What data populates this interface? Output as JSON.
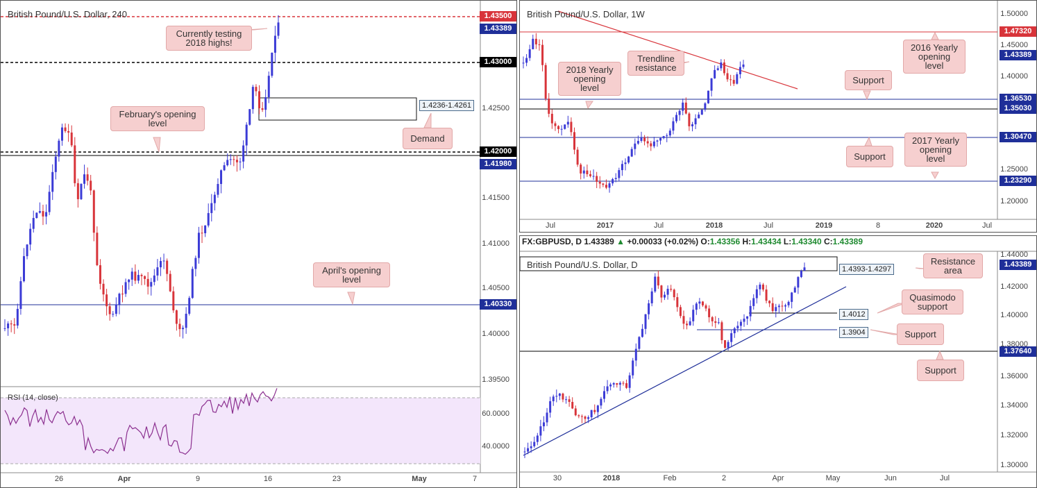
{
  "colors": {
    "up": "#3b3bd6",
    "down": "#d8343a",
    "resistance": "#d8343a",
    "support": "#1f2f99",
    "black": "#000000",
    "rsi": "#8b2f8f"
  },
  "p1": {
    "title": "British Pound/U.S. Dollar, 240",
    "price_tags": [
      {
        "text": "1.43500",
        "kind": "red"
      },
      {
        "text": "1.43389",
        "kind": "blue"
      },
      {
        "text": "1.43000",
        "kind": "black"
      },
      {
        "text": "1.42000",
        "kind": "black"
      },
      {
        "text": "1.41980",
        "kind": "blue"
      },
      {
        "text": "1.40330",
        "kind": "blue"
      }
    ],
    "y_labels": [
      "1.42500",
      "1.41500",
      "1.41000",
      "1.40500",
      "1.40000",
      "1.39500"
    ],
    "rsi_labels": [
      "60.0000",
      "40.0000"
    ],
    "rsi_title": "RSI (14, close)",
    "x_labels": [
      {
        "t": "26",
        "b": false
      },
      {
        "t": "Apr",
        "b": true
      },
      {
        "t": "9",
        "b": false
      },
      {
        "t": "16",
        "b": false
      },
      {
        "t": "23",
        "b": false
      },
      {
        "t": "May",
        "b": true
      },
      {
        "t": "7",
        "b": false
      }
    ],
    "callouts": {
      "testing": "Currently testing 2018 highs!",
      "feb": "February's opening level",
      "apr": "April's opening level",
      "demand": "Demand"
    },
    "demand_box": "1.4236-1.4261"
  },
  "p2": {
    "title": "British Pound/U.S. Dollar, 1W",
    "price_tags": [
      {
        "text": "1.47320",
        "kind": "red"
      },
      {
        "text": "1.43389",
        "kind": "blue"
      },
      {
        "text": "1.36530",
        "kind": "blue"
      },
      {
        "text": "1.35030",
        "kind": "blue"
      },
      {
        "text": "1.30470",
        "kind": "blue"
      },
      {
        "text": "1.23290",
        "kind": "blue"
      }
    ],
    "y_labels": [
      "1.50000",
      "1.45000",
      "1.40000",
      "1.25000",
      "1.20000"
    ],
    "x_labels": [
      {
        "t": "Jul",
        "b": false
      },
      {
        "t": "2017",
        "b": true
      },
      {
        "t": "Jul",
        "b": false
      },
      {
        "t": "2018",
        "b": true
      },
      {
        "t": "Jul",
        "b": false
      },
      {
        "t": "2019",
        "b": true
      },
      {
        "t": "8",
        "b": false
      },
      {
        "t": "2020",
        "b": true
      },
      {
        "t": "Jul",
        "b": false
      }
    ],
    "callouts": {
      "y2018": "2018 Yearly opening level",
      "trend": "Trendline resistance",
      "y2016": "2016 Yearly opening level",
      "support1": "Support",
      "support2": "Support",
      "y2017": "2017 Yearly opening level"
    }
  },
  "p3": {
    "ohlc": {
      "sym": "FX:GBPUSD, D",
      "last": "1.43389",
      "chg": "+0.00033 (+0.02%)",
      "o": "O:",
      "ov": "1.43356",
      "h": "H:",
      "hv": "1.43434",
      "l": "L:",
      "lv": "1.43340",
      "c": "C:",
      "cv": "1.43389"
    },
    "title": "British Pound/U.S. Dollar, D",
    "price_tags": [
      {
        "text": "1.43389",
        "kind": "blue"
      },
      {
        "text": "1.37640",
        "kind": "blue"
      }
    ],
    "y_labels": [
      "1.44000",
      "1.42000",
      "1.40000",
      "1.38000",
      "1.36000",
      "1.34000",
      "1.32000",
      "1.30000"
    ],
    "x_labels": [
      {
        "t": "30",
        "b": false
      },
      {
        "t": "2018",
        "b": true
      },
      {
        "t": "Feb",
        "b": false
      },
      {
        "t": "2",
        "b": false
      },
      {
        "t": "Apr",
        "b": false
      },
      {
        "t": "May",
        "b": false
      },
      {
        "t": "Jun",
        "b": false
      },
      {
        "t": "Jul",
        "b": false
      }
    ],
    "callouts": {
      "resist": "Resistance area",
      "quasi": "Quasimodo support",
      "support1": "Support",
      "support2": "Support"
    },
    "box_labels": {
      "res": "1.4393-1.4297",
      "quasi": "1.4012",
      "sup": "1.3904"
    }
  },
  "chart_data": [
    {
      "type": "candlestick",
      "title": "British Pound/U.S. Dollar, 240",
      "ylim": [
        1.393,
        1.436
      ],
      "levels": [
        1.435,
        1.43,
        1.42,
        1.4198,
        1.4033
      ],
      "demand_zone": [
        1.4236,
        1.4261
      ],
      "rsi": {
        "name": "RSI (14, close)",
        "levels": [
          70,
          30
        ]
      }
    },
    {
      "type": "candlestick",
      "title": "British Pound/U.S. Dollar, 1W",
      "ylim": [
        1.175,
        1.505
      ],
      "levels": [
        1.4732,
        1.3653,
        1.3503,
        1.3047,
        1.2329
      ],
      "last": 1.43389
    },
    {
      "type": "candlestick",
      "title": "British Pound/U.S. Dollar, D",
      "ylim": [
        1.298,
        1.442
      ],
      "levels": [
        1.3764,
        1.4012,
        1.3904
      ],
      "resistance_zone": [
        1.4297,
        1.4393
      ],
      "last": 1.43389
    }
  ]
}
